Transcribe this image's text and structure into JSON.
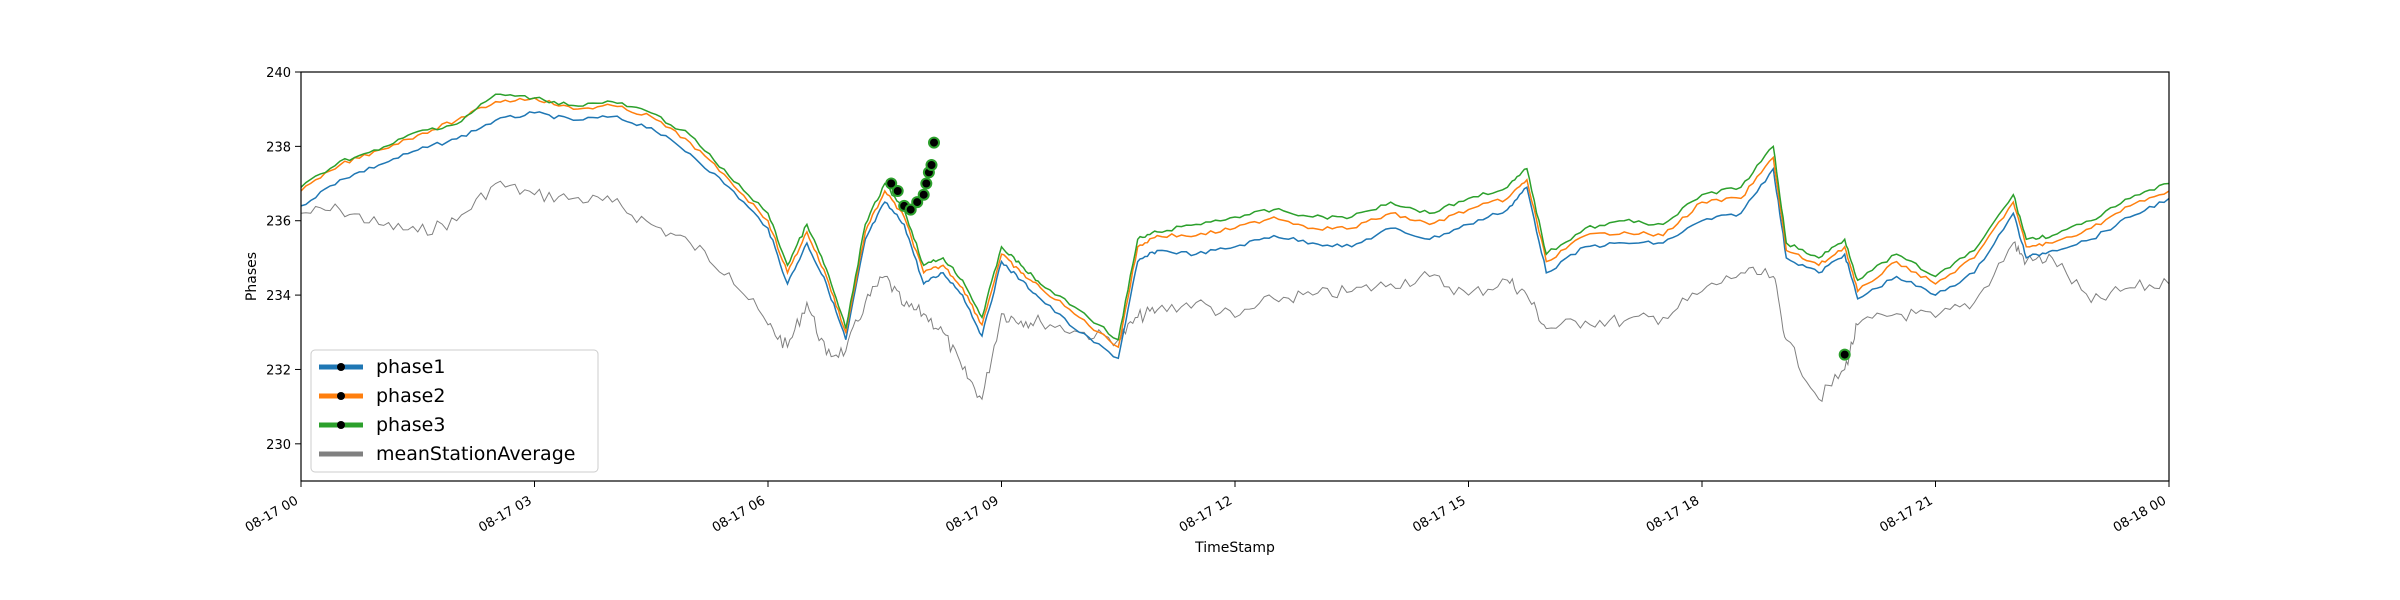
{
  "chart_data": {
    "type": "line",
    "xlabel": "TimeStamp",
    "ylabel": "Phases",
    "ylim": [
      229,
      240
    ],
    "xlim": [
      "2000-08-17T00:00",
      "2000-08-18T00:00"
    ],
    "x_ticks": [
      {
        "t": "2000-08-17T00:00",
        "label": "08-17 00"
      },
      {
        "t": "2000-08-17T03:00",
        "label": "08-17 03"
      },
      {
        "t": "2000-08-17T06:00",
        "label": "08-17 06"
      },
      {
        "t": "2000-08-17T09:00",
        "label": "08-17 09"
      },
      {
        "t": "2000-08-17T12:00",
        "label": "08-17 12"
      },
      {
        "t": "2000-08-17T15:00",
        "label": "08-17 15"
      },
      {
        "t": "2000-08-17T18:00",
        "label": "08-17 18"
      },
      {
        "t": "2000-08-17T21:00",
        "label": "08-17 21"
      },
      {
        "t": "2000-08-18T00:00",
        "label": "08-18 00"
      }
    ],
    "y_ticks": [
      230,
      232,
      234,
      236,
      238,
      240
    ],
    "legend": {
      "placement": "lower-left"
    },
    "grid": false,
    "series": [
      {
        "name": "phase1",
        "color": "#1f77b4",
        "marker": "black-dot",
        "x": [
          "2000-08-17T00:00",
          "2000-08-17T00:30",
          "2000-08-17T01:00",
          "2000-08-17T01:30",
          "2000-08-17T02:00",
          "2000-08-17T02:30",
          "2000-08-17T03:00",
          "2000-08-17T03:30",
          "2000-08-17T04:00",
          "2000-08-17T04:30",
          "2000-08-17T05:00",
          "2000-08-17T05:30",
          "2000-08-17T06:00",
          "2000-08-17T06:15",
          "2000-08-17T06:30",
          "2000-08-17T06:45",
          "2000-08-17T07:00",
          "2000-08-17T07:15",
          "2000-08-17T07:30",
          "2000-08-17T07:45",
          "2000-08-17T08:00",
          "2000-08-17T08:15",
          "2000-08-17T08:30",
          "2000-08-17T08:45",
          "2000-08-17T09:00",
          "2000-08-17T09:15",
          "2000-08-17T09:30",
          "2000-08-17T10:00",
          "2000-08-17T10:30",
          "2000-08-17T10:45",
          "2000-08-17T11:00",
          "2000-08-17T11:30",
          "2000-08-17T12:00",
          "2000-08-17T12:30",
          "2000-08-17T13:00",
          "2000-08-17T13:30",
          "2000-08-17T14:00",
          "2000-08-17T14:30",
          "2000-08-17T15:00",
          "2000-08-17T15:30",
          "2000-08-17T15:45",
          "2000-08-17T16:00",
          "2000-08-17T16:30",
          "2000-08-17T17:00",
          "2000-08-17T17:30",
          "2000-08-17T18:00",
          "2000-08-17T18:30",
          "2000-08-17T18:55",
          "2000-08-17T19:05",
          "2000-08-17T19:30",
          "2000-08-17T19:50",
          "2000-08-17T20:00",
          "2000-08-17T20:30",
          "2000-08-17T21:00",
          "2000-08-17T21:30",
          "2000-08-17T22:00",
          "2000-08-17T22:10",
          "2000-08-17T22:30",
          "2000-08-17T23:00",
          "2000-08-17T23:30",
          "2000-08-18T00:00"
        ],
        "values": [
          236.4,
          237.1,
          237.5,
          237.9,
          238.2,
          238.7,
          238.9,
          238.7,
          238.8,
          238.5,
          237.8,
          236.9,
          235.8,
          234.3,
          235.4,
          234.3,
          232.8,
          235.5,
          236.5,
          235.9,
          234.3,
          234.6,
          234.0,
          232.9,
          234.9,
          234.4,
          233.9,
          233.0,
          232.3,
          234.9,
          235.2,
          235.1,
          235.3,
          235.6,
          235.4,
          235.3,
          235.8,
          235.5,
          235.9,
          236.3,
          236.9,
          234.6,
          235.3,
          235.4,
          235.4,
          236.0,
          236.2,
          237.4,
          235.0,
          234.6,
          235.1,
          233.9,
          234.5,
          234.0,
          234.6,
          236.2,
          235.0,
          235.2,
          235.5,
          236.1,
          236.6
        ]
      },
      {
        "name": "phase2",
        "color": "#ff7f0e",
        "marker": "black-dot",
        "x": [
          "2000-08-17T00:00",
          "2000-08-17T00:30",
          "2000-08-17T01:00",
          "2000-08-17T01:30",
          "2000-08-17T02:00",
          "2000-08-17T02:30",
          "2000-08-17T03:00",
          "2000-08-17T03:30",
          "2000-08-17T04:00",
          "2000-08-17T04:30",
          "2000-08-17T05:00",
          "2000-08-17T05:30",
          "2000-08-17T06:00",
          "2000-08-17T06:15",
          "2000-08-17T06:30",
          "2000-08-17T06:45",
          "2000-08-17T07:00",
          "2000-08-17T07:15",
          "2000-08-17T07:30",
          "2000-08-17T07:45",
          "2000-08-17T08:00",
          "2000-08-17T08:15",
          "2000-08-17T08:30",
          "2000-08-17T08:45",
          "2000-08-17T09:00",
          "2000-08-17T09:15",
          "2000-08-17T09:30",
          "2000-08-17T10:00",
          "2000-08-17T10:30",
          "2000-08-17T10:45",
          "2000-08-17T11:00",
          "2000-08-17T11:30",
          "2000-08-17T12:00",
          "2000-08-17T12:30",
          "2000-08-17T13:00",
          "2000-08-17T13:30",
          "2000-08-17T14:00",
          "2000-08-17T14:30",
          "2000-08-17T15:00",
          "2000-08-17T15:30",
          "2000-08-17T15:45",
          "2000-08-17T16:00",
          "2000-08-17T16:30",
          "2000-08-17T17:00",
          "2000-08-17T17:30",
          "2000-08-17T18:00",
          "2000-08-17T18:30",
          "2000-08-17T18:55",
          "2000-08-17T19:05",
          "2000-08-17T19:30",
          "2000-08-17T19:50",
          "2000-08-17T20:00",
          "2000-08-17T20:30",
          "2000-08-17T21:00",
          "2000-08-17T21:30",
          "2000-08-17T22:00",
          "2000-08-17T22:10",
          "2000-08-17T22:30",
          "2000-08-17T23:00",
          "2000-08-17T23:30",
          "2000-08-18T00:00"
        ],
        "values": [
          236.8,
          237.5,
          237.9,
          238.3,
          238.7,
          239.2,
          239.3,
          239.0,
          239.1,
          238.8,
          238.1,
          237.1,
          236.0,
          234.6,
          235.7,
          234.5,
          233.0,
          235.7,
          236.8,
          236.1,
          234.6,
          234.8,
          234.2,
          233.2,
          235.1,
          234.6,
          234.2,
          233.4,
          232.6,
          235.3,
          235.6,
          235.6,
          235.8,
          236.1,
          235.8,
          235.8,
          236.2,
          235.9,
          236.3,
          236.6,
          237.1,
          234.9,
          235.6,
          235.7,
          235.6,
          236.5,
          236.6,
          237.7,
          235.2,
          234.8,
          235.3,
          234.1,
          234.9,
          234.3,
          235.0,
          236.5,
          235.3,
          235.4,
          235.8,
          236.4,
          236.8
        ]
      },
      {
        "name": "phase3",
        "color": "#2ca02c",
        "marker": "black-dot",
        "x": [
          "2000-08-17T00:00",
          "2000-08-17T00:30",
          "2000-08-17T01:00",
          "2000-08-17T01:30",
          "2000-08-17T02:00",
          "2000-08-17T02:30",
          "2000-08-17T03:00",
          "2000-08-17T03:30",
          "2000-08-17T04:00",
          "2000-08-17T04:30",
          "2000-08-17T05:00",
          "2000-08-17T05:30",
          "2000-08-17T06:00",
          "2000-08-17T06:15",
          "2000-08-17T06:30",
          "2000-08-17T06:45",
          "2000-08-17T07:00",
          "2000-08-17T07:15",
          "2000-08-17T07:30",
          "2000-08-17T07:45",
          "2000-08-17T08:00",
          "2000-08-17T08:15",
          "2000-08-17T08:30",
          "2000-08-17T08:45",
          "2000-08-17T09:00",
          "2000-08-17T09:15",
          "2000-08-17T09:30",
          "2000-08-17T10:00",
          "2000-08-17T10:30",
          "2000-08-17T10:45",
          "2000-08-17T11:00",
          "2000-08-17T11:30",
          "2000-08-17T12:00",
          "2000-08-17T12:30",
          "2000-08-17T13:00",
          "2000-08-17T13:30",
          "2000-08-17T14:00",
          "2000-08-17T14:30",
          "2000-08-17T15:00",
          "2000-08-17T15:30",
          "2000-08-17T15:45",
          "2000-08-17T16:00",
          "2000-08-17T16:30",
          "2000-08-17T17:00",
          "2000-08-17T17:30",
          "2000-08-17T18:00",
          "2000-08-17T18:30",
          "2000-08-17T18:55",
          "2000-08-17T19:05",
          "2000-08-17T19:30",
          "2000-08-17T19:50",
          "2000-08-17T20:00",
          "2000-08-17T20:30",
          "2000-08-17T21:00",
          "2000-08-17T21:30",
          "2000-08-17T22:00",
          "2000-08-17T22:10",
          "2000-08-17T22:30",
          "2000-08-17T23:00",
          "2000-08-17T23:30",
          "2000-08-18T00:00"
        ],
        "values": [
          236.9,
          237.6,
          237.9,
          238.4,
          238.6,
          239.4,
          239.3,
          239.1,
          239.2,
          238.9,
          238.3,
          237.2,
          236.2,
          234.8,
          235.9,
          234.7,
          233.1,
          235.9,
          237.0,
          236.3,
          234.8,
          235.0,
          234.4,
          233.4,
          235.3,
          234.8,
          234.3,
          233.6,
          232.8,
          235.5,
          235.7,
          235.9,
          236.1,
          236.3,
          236.1,
          236.1,
          236.5,
          236.2,
          236.6,
          236.9,
          237.4,
          235.1,
          235.8,
          236.0,
          235.9,
          236.7,
          236.9,
          238.0,
          235.4,
          235.0,
          235.5,
          234.4,
          235.1,
          234.5,
          235.2,
          236.7,
          235.5,
          235.6,
          236.0,
          236.6,
          237.0
        ]
      },
      {
        "name": "meanStationAverage",
        "color": "#808080",
        "marker": "none",
        "x": [
          "2000-08-17T00:00",
          "2000-08-17T00:30",
          "2000-08-17T01:00",
          "2000-08-17T01:30",
          "2000-08-17T02:00",
          "2000-08-17T02:30",
          "2000-08-17T03:00",
          "2000-08-17T03:30",
          "2000-08-17T04:00",
          "2000-08-17T04:30",
          "2000-08-17T05:00",
          "2000-08-17T05:30",
          "2000-08-17T06:00",
          "2000-08-17T06:15",
          "2000-08-17T06:30",
          "2000-08-17T06:45",
          "2000-08-17T07:00",
          "2000-08-17T07:15",
          "2000-08-17T07:30",
          "2000-08-17T07:45",
          "2000-08-17T08:00",
          "2000-08-17T08:15",
          "2000-08-17T08:30",
          "2000-08-17T08:45",
          "2000-08-17T09:00",
          "2000-08-17T09:15",
          "2000-08-17T09:30",
          "2000-08-17T10:00",
          "2000-08-17T10:30",
          "2000-08-17T10:45",
          "2000-08-17T11:00",
          "2000-08-17T11:30",
          "2000-08-17T12:00",
          "2000-08-17T12:30",
          "2000-08-17T13:00",
          "2000-08-17T13:30",
          "2000-08-17T14:00",
          "2000-08-17T14:30",
          "2000-08-17T15:00",
          "2000-08-17T15:30",
          "2000-08-17T15:45",
          "2000-08-17T16:00",
          "2000-08-17T16:30",
          "2000-08-17T17:00",
          "2000-08-17T17:30",
          "2000-08-17T18:00",
          "2000-08-17T18:30",
          "2000-08-17T18:55",
          "2000-08-17T19:05",
          "2000-08-17T19:30",
          "2000-08-17T19:50",
          "2000-08-17T20:00",
          "2000-08-17T20:30",
          "2000-08-17T21:00",
          "2000-08-17T21:30",
          "2000-08-17T22:00",
          "2000-08-17T22:10",
          "2000-08-17T22:30",
          "2000-08-17T23:00",
          "2000-08-17T23:30",
          "2000-08-18T00:00"
        ],
        "values": [
          236.2,
          236.3,
          235.9,
          235.7,
          236.0,
          237.0,
          236.7,
          236.6,
          236.5,
          235.9,
          235.4,
          234.6,
          233.2,
          232.6,
          233.8,
          232.4,
          232.5,
          233.8,
          234.5,
          233.7,
          233.5,
          233.0,
          232.0,
          231.2,
          233.5,
          233.3,
          233.3,
          233.0,
          232.8,
          233.4,
          233.6,
          233.8,
          233.4,
          233.9,
          234.0,
          234.1,
          234.3,
          234.5,
          234.0,
          234.4,
          234.0,
          233.1,
          233.3,
          233.3,
          233.4,
          234.1,
          234.6,
          234.5,
          232.8,
          231.2,
          232.0,
          233.2,
          233.5,
          233.4,
          233.8,
          235.4,
          234.9,
          235.0,
          233.8,
          234.2,
          234.3
        ]
      }
    ],
    "markers": [
      {
        "series": "phase3",
        "x": [
          "2000-08-17T07:35",
          "2000-08-17T07:40",
          "2000-08-17T07:45",
          "2000-08-17T07:50",
          "2000-08-17T07:55",
          "2000-08-17T08:00",
          "2000-08-17T08:02",
          "2000-08-17T08:04",
          "2000-08-17T08:06",
          "2000-08-17T08:08",
          "2000-08-17T19:50"
        ],
        "values": [
          237.0,
          236.8,
          236.4,
          236.3,
          236.5,
          236.7,
          237.0,
          237.3,
          237.5,
          238.1,
          232.4
        ]
      }
    ]
  }
}
